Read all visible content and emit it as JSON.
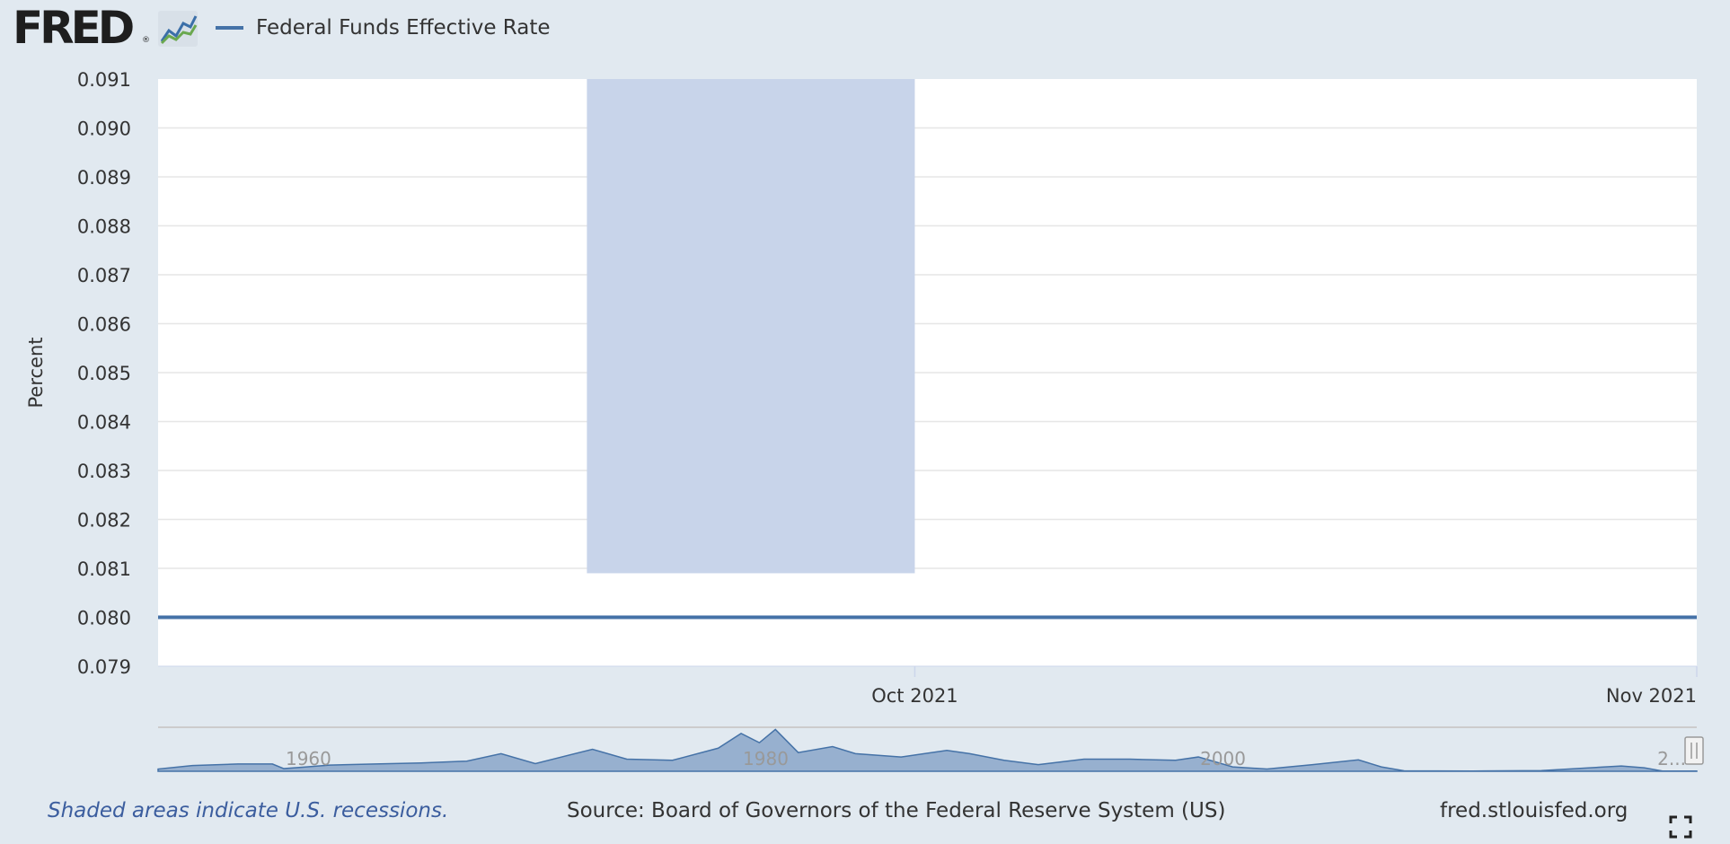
{
  "header": {
    "logo_text": "FRED",
    "logo_reg": "®",
    "legend_label": "Federal Funds Effective Rate"
  },
  "colors": {
    "series": "#4572a7",
    "recession": "#c8d4ea",
    "background": "#e1e9f0",
    "plot_bg": "#ffffff",
    "navigator_fill": "#7e9cc4"
  },
  "chart_data": {
    "type": "line",
    "title": "",
    "xlabel": "",
    "ylabel": "Percent",
    "ylim": [
      0.079,
      0.091
    ],
    "y_ticks": [
      "0.091",
      "0.090",
      "0.089",
      "0.088",
      "0.087",
      "0.086",
      "0.085",
      "0.084",
      "0.083",
      "0.082",
      "0.081",
      "0.080",
      "0.079"
    ],
    "x_ticks": [
      "Oct 2021",
      "Nov 2021"
    ],
    "xlim": [
      "2021-09-01",
      "2021-11-01"
    ],
    "series": [
      {
        "name": "Federal Funds Effective Rate",
        "x": [
          "2021-09-01",
          "2021-11-01"
        ],
        "y": [
          0.08,
          0.08
        ]
      }
    ],
    "shaded_region": {
      "start": "2021-09-18",
      "end": "2021-10-01",
      "top": 0.0809
    },
    "grid": true,
    "legend_position": "top-left",
    "navigator": {
      "labels": [
        "1960",
        "1980",
        "2000",
        "2..."
      ],
      "x": [
        1954.5,
        1956,
        1958,
        1959.5,
        1960,
        1961,
        1962,
        1964,
        1966,
        1968,
        1969.5,
        1971,
        1973.5,
        1975,
        1977,
        1979,
        1980,
        1980.8,
        1981.5,
        1982.5,
        1984,
        1985,
        1987,
        1989,
        1990,
        1991.5,
        1993,
        1995,
        1997,
        1999,
        2000,
        2001.5,
        2003,
        2005,
        2007,
        2008,
        2009,
        2012,
        2015,
        2018.5,
        2019.5,
        2020.3,
        2021.8
      ],
      "y": [
        1.0,
        2.6,
        3.3,
        3.3,
        1.2,
        2.0,
        2.8,
        3.3,
        3.8,
        4.6,
        8.0,
        3.5,
        10.0,
        5.5,
        5.0,
        10.5,
        17.2,
        13.0,
        19.0,
        8.5,
        11.2,
        8.0,
        6.5,
        9.5,
        8.0,
        5.0,
        3.0,
        5.5,
        5.5,
        5.0,
        6.5,
        2.0,
        1.0,
        3.0,
        5.2,
        2.0,
        0.2,
        0.1,
        0.3,
        2.4,
        1.6,
        0.1,
        0.08
      ],
      "ylim": [
        0,
        20
      ],
      "xlim": [
        1954.5,
        2021.8
      ]
    }
  },
  "footer": {
    "note": "Shaded areas indicate U.S. recessions.",
    "source": "Source: Board of Governors of the Federal Reserve System (US)",
    "url": "fred.stlouisfed.org"
  }
}
